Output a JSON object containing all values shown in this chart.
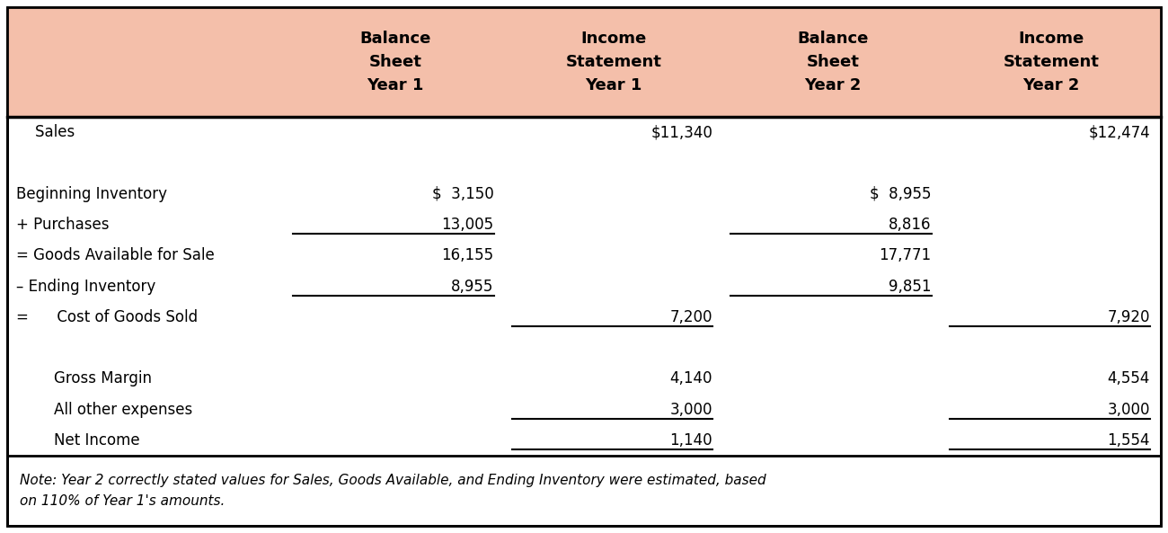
{
  "header_bg": "#f4bfaa",
  "white_bg": "#ffffff",
  "border_color": "#000000",
  "col_labels": [
    "",
    "Balance\nSheet\nYear 1",
    "Income\nStatement\nYear 1",
    "Balance\nSheet\nYear 2",
    "Income\nStatement\nYear 2"
  ],
  "rows": [
    {
      "label": "    Sales",
      "cols": [
        "",
        "$11,340",
        "",
        "$12,474"
      ],
      "ul_above": [],
      "ul_below": []
    },
    {
      "label": "",
      "cols": [
        "",
        "",
        "",
        ""
      ],
      "ul_above": [],
      "ul_below": []
    },
    {
      "label": "Beginning Inventory",
      "cols": [
        "$  3,150",
        "",
        "$  8,955",
        ""
      ],
      "ul_above": [],
      "ul_below": []
    },
    {
      "label": "+ Purchases",
      "cols": [
        "13,005",
        "",
        "8,816",
        ""
      ],
      "ul_above": [],
      "ul_below": [
        0,
        2
      ]
    },
    {
      "label": "= Goods Available for Sale",
      "cols": [
        "16,155",
        "",
        "17,771",
        ""
      ],
      "ul_above": [],
      "ul_below": []
    },
    {
      "label": "– Ending Inventory",
      "cols": [
        "8,955",
        "",
        "9,851",
        ""
      ],
      "ul_above": [],
      "ul_below": [
        0,
        2
      ]
    },
    {
      "label": "=      Cost of Goods Sold",
      "cols": [
        "",
        "7,200",
        "",
        "7,920"
      ],
      "ul_above": [],
      "ul_below": [
        1,
        3
      ]
    },
    {
      "label": "",
      "cols": [
        "",
        "",
        "",
        ""
      ],
      "ul_above": [],
      "ul_below": []
    },
    {
      "label": "        Gross Margin",
      "cols": [
        "",
        "4,140",
        "",
        "4,554"
      ],
      "ul_above": [],
      "ul_below": []
    },
    {
      "label": "        All other expenses",
      "cols": [
        "",
        "3,000",
        "",
        "3,000"
      ],
      "ul_above": [],
      "ul_below": [
        1,
        3
      ]
    },
    {
      "label": "        Net Income",
      "cols": [
        "",
        "1,140",
        "",
        "1,554"
      ],
      "ul_above": [],
      "ul_below": [
        1,
        3
      ]
    }
  ],
  "note": "Note: Year 2 correctly stated values for Sales, Goods Available, and Ending Inventory were estimated, based\non 110% of Year 1's amounts.",
  "figsize": [
    13.0,
    5.93
  ],
  "dpi": 100,
  "header_fontsize": 13,
  "body_fontsize": 12,
  "note_fontsize": 11
}
